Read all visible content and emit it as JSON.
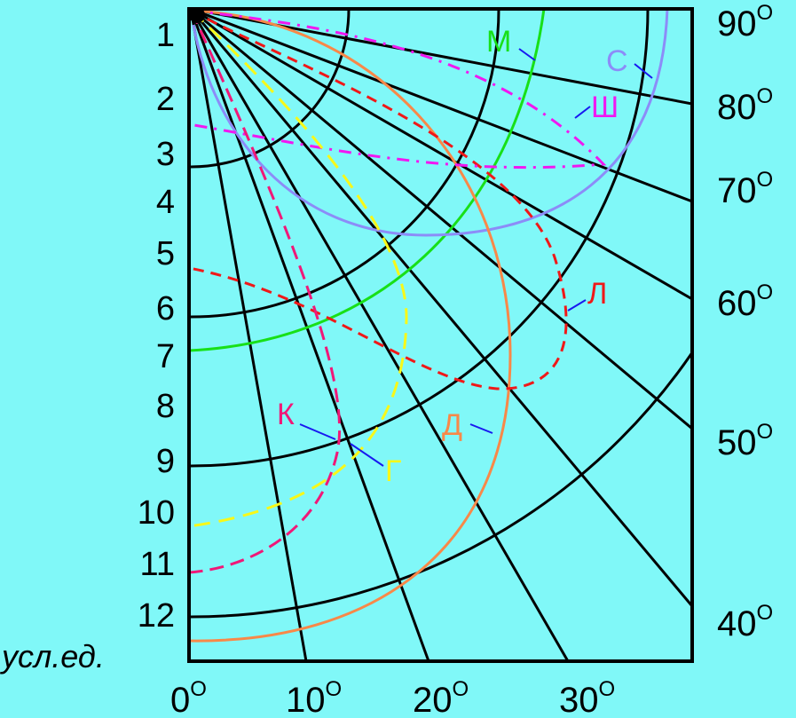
{
  "diagram": {
    "left_scale": [
      "1",
      "2",
      "3",
      "4",
      "5",
      "6",
      "7",
      "8",
      "9",
      "10",
      "11",
      "12"
    ],
    "left_unit": "усл.ед.",
    "bottom_angles": [
      {
        "num": "0",
        "sup": "O"
      },
      {
        "num": "10",
        "sup": "O"
      },
      {
        "num": "20",
        "sup": "O"
      },
      {
        "num": "30",
        "sup": "O"
      }
    ],
    "right_angles": [
      {
        "num": "90",
        "sup": "O"
      },
      {
        "num": "80",
        "sup": "O"
      },
      {
        "num": "70",
        "sup": "O"
      },
      {
        "num": "60",
        "sup": "O"
      },
      {
        "num": "50",
        "sup": "O"
      },
      {
        "num": "40",
        "sup": "O"
      }
    ],
    "curves": [
      {
        "key": "M",
        "label": "М",
        "color": "#18e018",
        "style": "solid"
      },
      {
        "key": "S",
        "label": "С",
        "color": "#8c8cf8",
        "style": "solid"
      },
      {
        "key": "SH",
        "label": "Ш",
        "color": "#f018f0",
        "style": "dash-dot"
      },
      {
        "key": "L",
        "label": "Л",
        "color": "#f01818",
        "style": "dashed"
      },
      {
        "key": "D",
        "label": "Д",
        "color": "#f88848",
        "style": "solid"
      },
      {
        "key": "K",
        "label": "К",
        "color": "#f01878",
        "style": "dashed"
      },
      {
        "key": "G",
        "label": "Г",
        "color": "#f8f818",
        "style": "dashed"
      }
    ]
  }
}
